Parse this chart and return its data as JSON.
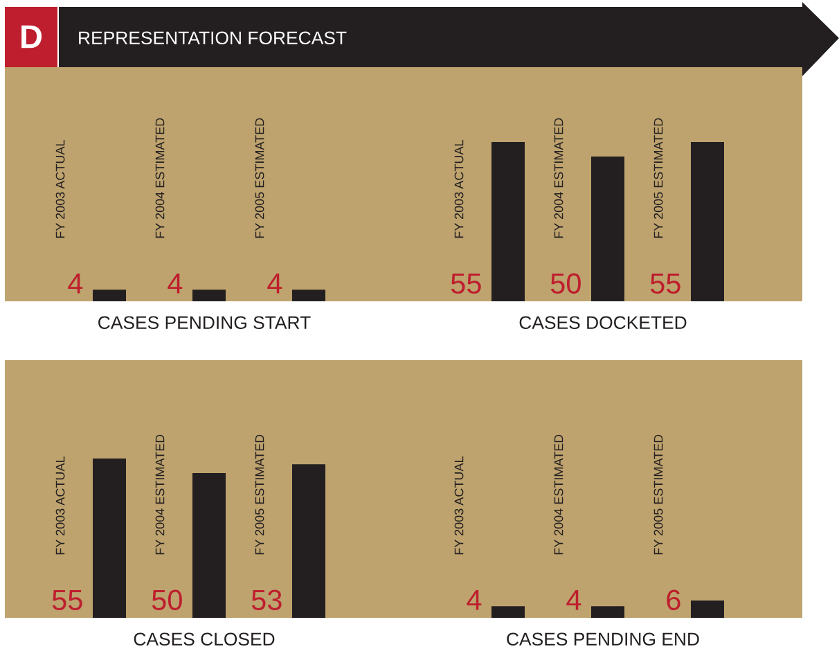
{
  "chart_data": [
    {
      "type": "other",
      "title": "REPRESENTATION FORECAST",
      "annotations": [
        "D"
      ]
    },
    {
      "type": "bar",
      "title": "CASES PENDING START",
      "categories": [
        "FY 2003 ACTUAL",
        "FY 2004 ESTIMATED",
        "FY 2005 ESTIMATED"
      ],
      "values": [
        4,
        4,
        4
      ],
      "color": "#231f20",
      "data_labels": true
    },
    {
      "type": "bar",
      "title": "CASES DOCKETED",
      "categories": [
        "FY 2003 ACTUAL",
        "FY 2004 ESTIMATED",
        "FY 2005 ESTIMATED"
      ],
      "values": [
        55,
        50,
        55
      ],
      "color": "#231f20",
      "data_labels": true
    },
    {
      "type": "bar",
      "title": "CASES CLOSED",
      "categories": [
        "FY 2003 ACTUAL",
        "FY 2004 ESTIMATED",
        "FY 2005 ESTIMATED"
      ],
      "values": [
        55,
        50,
        53
      ],
      "color": "#231f20",
      "data_labels": true
    },
    {
      "type": "bar",
      "title": "CASES PENDING END",
      "categories": [
        "FY 2003 ACTUAL",
        "FY 2004 ESTIMATED",
        "FY 2005 ESTIMATED"
      ],
      "values": [
        4,
        4,
        6
      ],
      "color": "#231f20",
      "data_labels": true
    }
  ]
}
